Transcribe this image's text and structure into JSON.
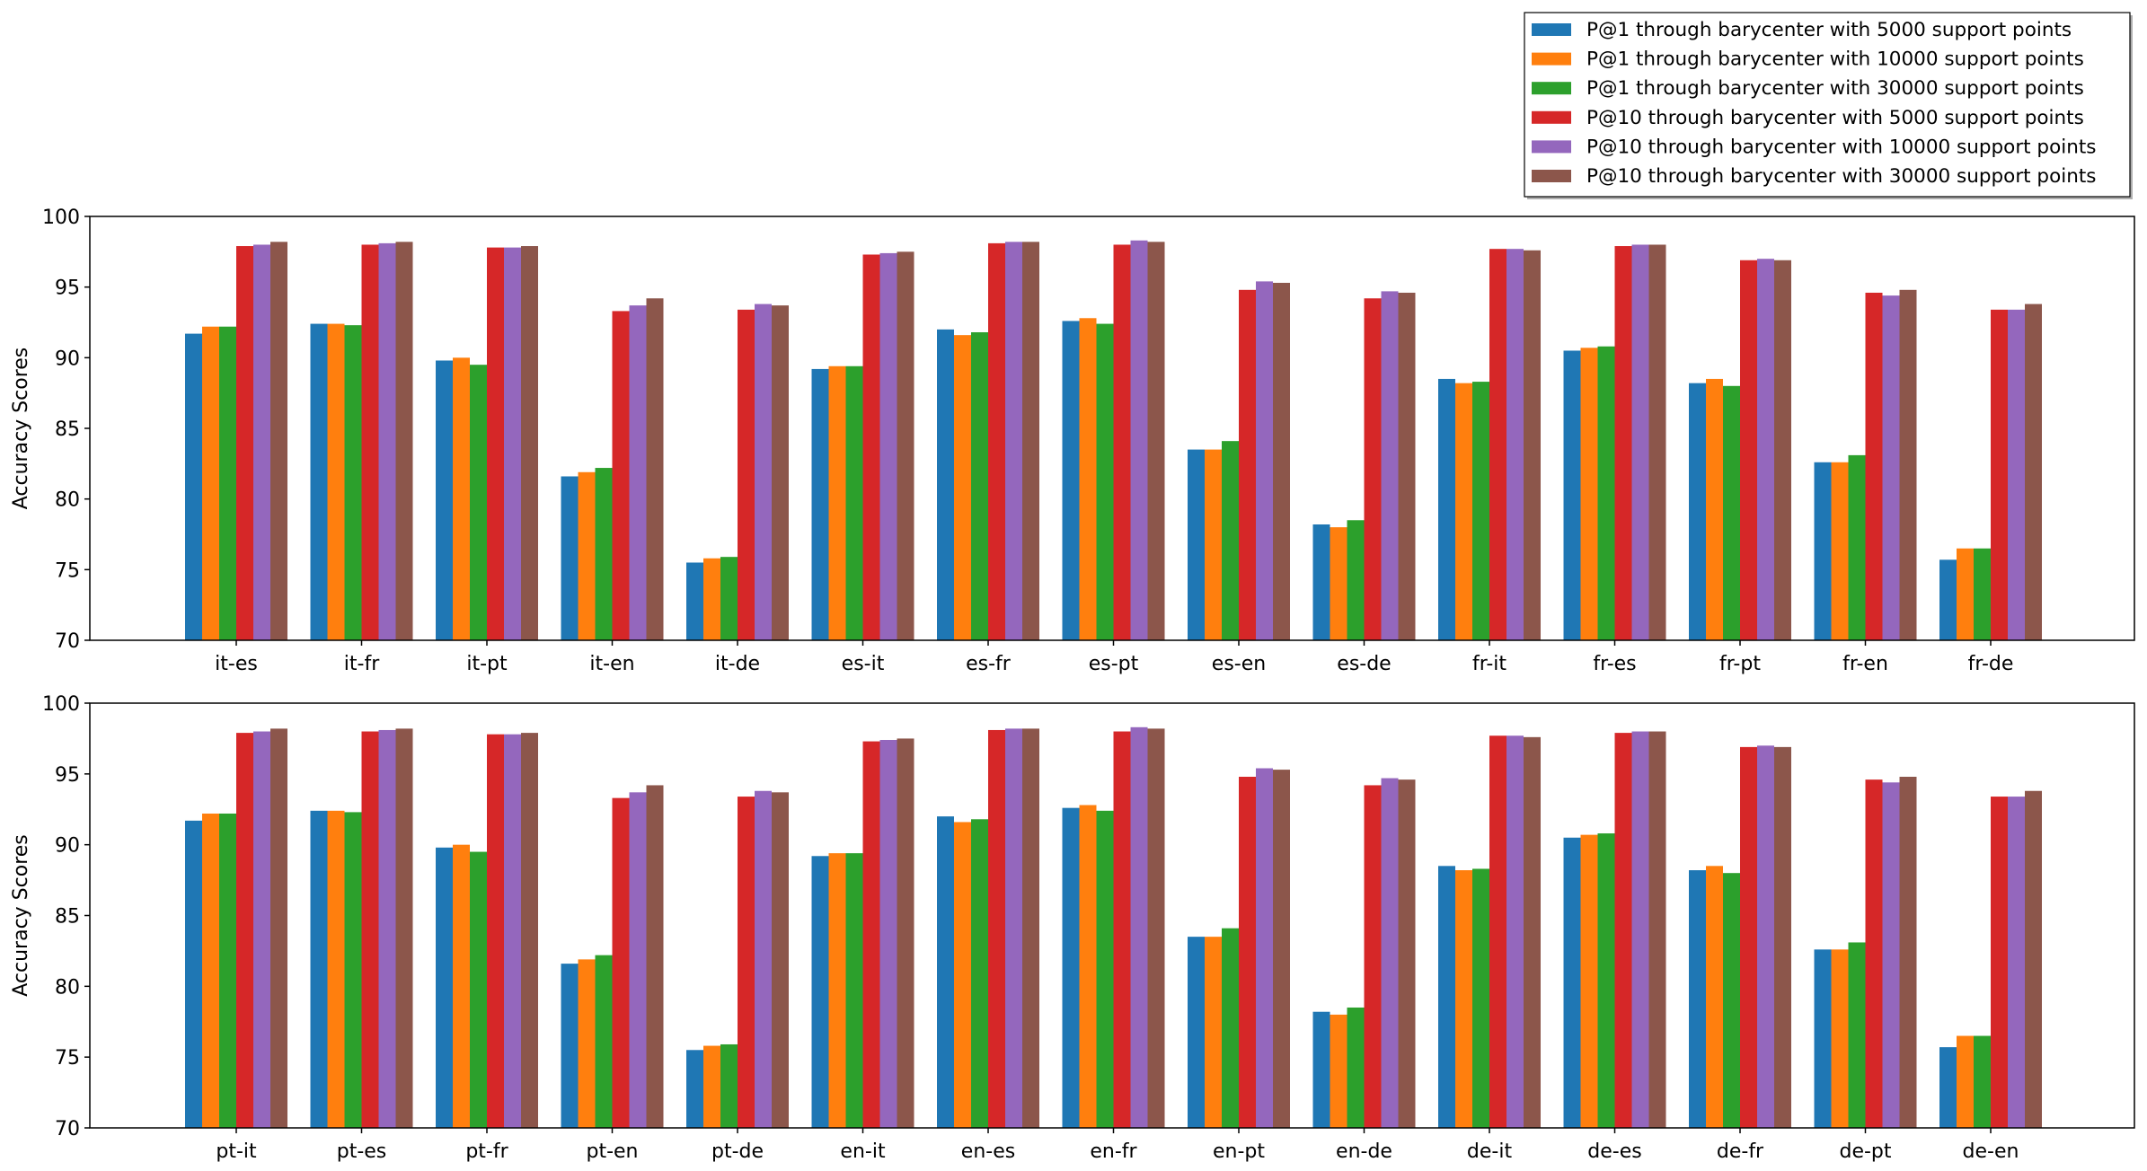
{
  "legend": {
    "placement": "top-right",
    "entries": [
      {
        "label": "P@1 through barycenter with 5000 support points",
        "color": "#1f77b4"
      },
      {
        "label": "P@1 through barycenter with 10000 support points",
        "color": "#ff7f0e"
      },
      {
        "label": "P@1 through barycenter with 30000 support points",
        "color": "#2ca02c"
      },
      {
        "label": "P@10 through barycenter with 5000 support points",
        "color": "#d62728"
      },
      {
        "label": "P@10 through barycenter with 10000 support points",
        "color": "#9467bd"
      },
      {
        "label": "P@10 through barycenter with 30000 support points",
        "color": "#8c564b"
      }
    ]
  },
  "chart_data": [
    {
      "type": "bar",
      "ylabel": "Accuracy Scores",
      "ylim": [
        70,
        100
      ],
      "yticks": [
        "70",
        "75",
        "80",
        "85",
        "90",
        "95",
        "100"
      ],
      "grid": false,
      "categories": [
        "it-es",
        "it-fr",
        "it-pt",
        "it-en",
        "it-de",
        "es-it",
        "es-fr",
        "es-pt",
        "es-en",
        "es-de",
        "fr-it",
        "fr-es",
        "fr-pt",
        "fr-en",
        "fr-de"
      ],
      "series": [
        {
          "name": "P@1 through barycenter with 5000 support points",
          "values": [
            91.7,
            92.4,
            89.8,
            81.6,
            75.5,
            89.2,
            92.0,
            92.6,
            83.5,
            78.2,
            88.5,
            90.5,
            88.2,
            82.6,
            75.7
          ]
        },
        {
          "name": "P@1 through barycenter with 10000 support points",
          "values": [
            92.2,
            92.4,
            90.0,
            81.9,
            75.8,
            89.4,
            91.6,
            92.8,
            83.5,
            78.0,
            88.2,
            90.7,
            88.5,
            82.6,
            76.5
          ]
        },
        {
          "name": "P@1 through barycenter with 30000 support points",
          "values": [
            92.2,
            92.3,
            89.5,
            82.2,
            75.9,
            89.4,
            91.8,
            92.4,
            84.1,
            78.5,
            88.3,
            90.8,
            88.0,
            83.1,
            76.5
          ]
        },
        {
          "name": "P@10 through barycenter with 5000 support points",
          "values": [
            97.9,
            98.0,
            97.8,
            93.3,
            93.4,
            97.3,
            98.1,
            98.0,
            94.8,
            94.2,
            97.7,
            97.9,
            96.9,
            94.6,
            93.4
          ]
        },
        {
          "name": "P@10 through barycenter with 10000 support points",
          "values": [
            98.0,
            98.1,
            97.8,
            93.7,
            93.8,
            97.4,
            98.2,
            98.3,
            95.4,
            94.7,
            97.7,
            98.0,
            97.0,
            94.4,
            93.4
          ]
        },
        {
          "name": "P@10 through barycenter with 30000 support points",
          "values": [
            98.2,
            98.2,
            97.9,
            94.2,
            93.7,
            97.5,
            98.2,
            98.2,
            95.3,
            94.6,
            97.6,
            98.0,
            96.9,
            94.8,
            93.8
          ]
        }
      ]
    },
    {
      "type": "bar",
      "ylabel": "Accuracy Scores",
      "ylim": [
        70,
        100
      ],
      "yticks": [
        "70",
        "75",
        "80",
        "85",
        "90",
        "95",
        "100"
      ],
      "grid": false,
      "categories": [
        "pt-it",
        "pt-es",
        "pt-fr",
        "pt-en",
        "pt-de",
        "en-it",
        "en-es",
        "en-fr",
        "en-pt",
        "en-de",
        "de-it",
        "de-es",
        "de-fr",
        "de-pt",
        "de-en"
      ],
      "series": [
        {
          "name": "P@1 through barycenter with 5000 support points",
          "values": [
            91.7,
            92.4,
            89.8,
            81.6,
            75.5,
            89.2,
            92.0,
            92.6,
            83.5,
            78.2,
            88.5,
            90.5,
            88.2,
            82.6,
            75.7
          ]
        },
        {
          "name": "P@1 through barycenter with 10000 support points",
          "values": [
            92.2,
            92.4,
            90.0,
            81.9,
            75.8,
            89.4,
            91.6,
            92.8,
            83.5,
            78.0,
            88.2,
            90.7,
            88.5,
            82.6,
            76.5
          ]
        },
        {
          "name": "P@1 through barycenter with 30000 support points",
          "values": [
            92.2,
            92.3,
            89.5,
            82.2,
            75.9,
            89.4,
            91.8,
            92.4,
            84.1,
            78.5,
            88.3,
            90.8,
            88.0,
            83.1,
            76.5
          ]
        },
        {
          "name": "P@10 through barycenter with 5000 support points",
          "values": [
            97.9,
            98.0,
            97.8,
            93.3,
            93.4,
            97.3,
            98.1,
            98.0,
            94.8,
            94.2,
            97.7,
            97.9,
            96.9,
            94.6,
            93.4
          ]
        },
        {
          "name": "P@10 through barycenter with 10000 support points",
          "values": [
            98.0,
            98.1,
            97.8,
            93.7,
            93.8,
            97.4,
            98.2,
            98.3,
            95.4,
            94.7,
            97.7,
            98.0,
            97.0,
            94.4,
            93.4
          ]
        },
        {
          "name": "P@10 through barycenter with 30000 support points",
          "values": [
            98.2,
            98.2,
            97.9,
            94.2,
            93.7,
            97.5,
            98.2,
            98.2,
            95.3,
            94.6,
            97.6,
            98.0,
            96.9,
            94.8,
            93.8
          ]
        }
      ]
    }
  ]
}
